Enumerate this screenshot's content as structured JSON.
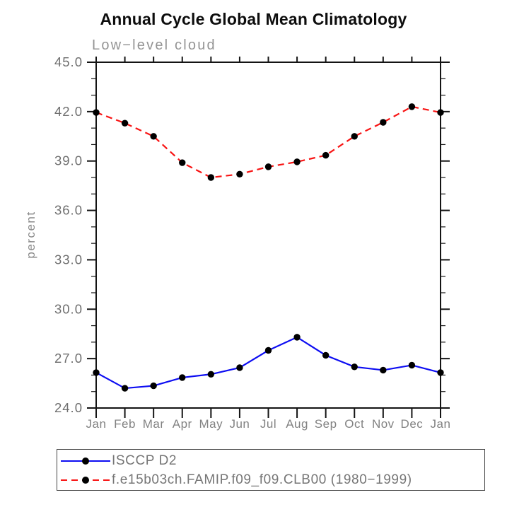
{
  "chart": {
    "title": "Annual Cycle Global Mean Climatology",
    "subtitle": "Low−level cloud",
    "ylabel": "percent"
  },
  "chart_data": {
    "type": "line",
    "title": "Annual Cycle Global Mean Climatology",
    "subtitle": "Low−level cloud",
    "xlabel": "",
    "ylabel": "percent",
    "categories": [
      "Jan",
      "Feb",
      "Mar",
      "Apr",
      "May",
      "Jun",
      "Jul",
      "Aug",
      "Sep",
      "Oct",
      "Nov",
      "Dec",
      "Jan"
    ],
    "ylim": [
      24.0,
      45.0
    ],
    "ytick_major_step": 3.0,
    "ytick_minor_step": 1.0,
    "ytick_labels": [
      "24.0",
      "27.0",
      "30.0",
      "33.0",
      "36.0",
      "39.0",
      "42.0",
      "45.0"
    ],
    "grid": false,
    "legend_position": "bottom",
    "axis_color": "#141414",
    "tick_label_color": "#767676",
    "series": [
      {
        "name": "ISCCP D2",
        "color": "#0d0df2",
        "line_style": "solid",
        "marker": "filled-circle",
        "marker_color": "#000000",
        "values": [
          26.15,
          25.2,
          25.35,
          25.85,
          26.05,
          26.45,
          27.5,
          28.3,
          27.2,
          26.5,
          26.3,
          26.6,
          26.15
        ]
      },
      {
        "name": "f.e15b03ch.FAMIP.f09_f09.CLB00 (1980−1999)",
        "color": "#f81414",
        "line_style": "dashed",
        "marker": "filled-circle",
        "marker_color": "#000000",
        "values": [
          41.95,
          41.3,
          40.5,
          38.9,
          38.0,
          38.2,
          38.65,
          38.95,
          39.35,
          40.5,
          41.35,
          42.3,
          41.95
        ]
      }
    ]
  }
}
